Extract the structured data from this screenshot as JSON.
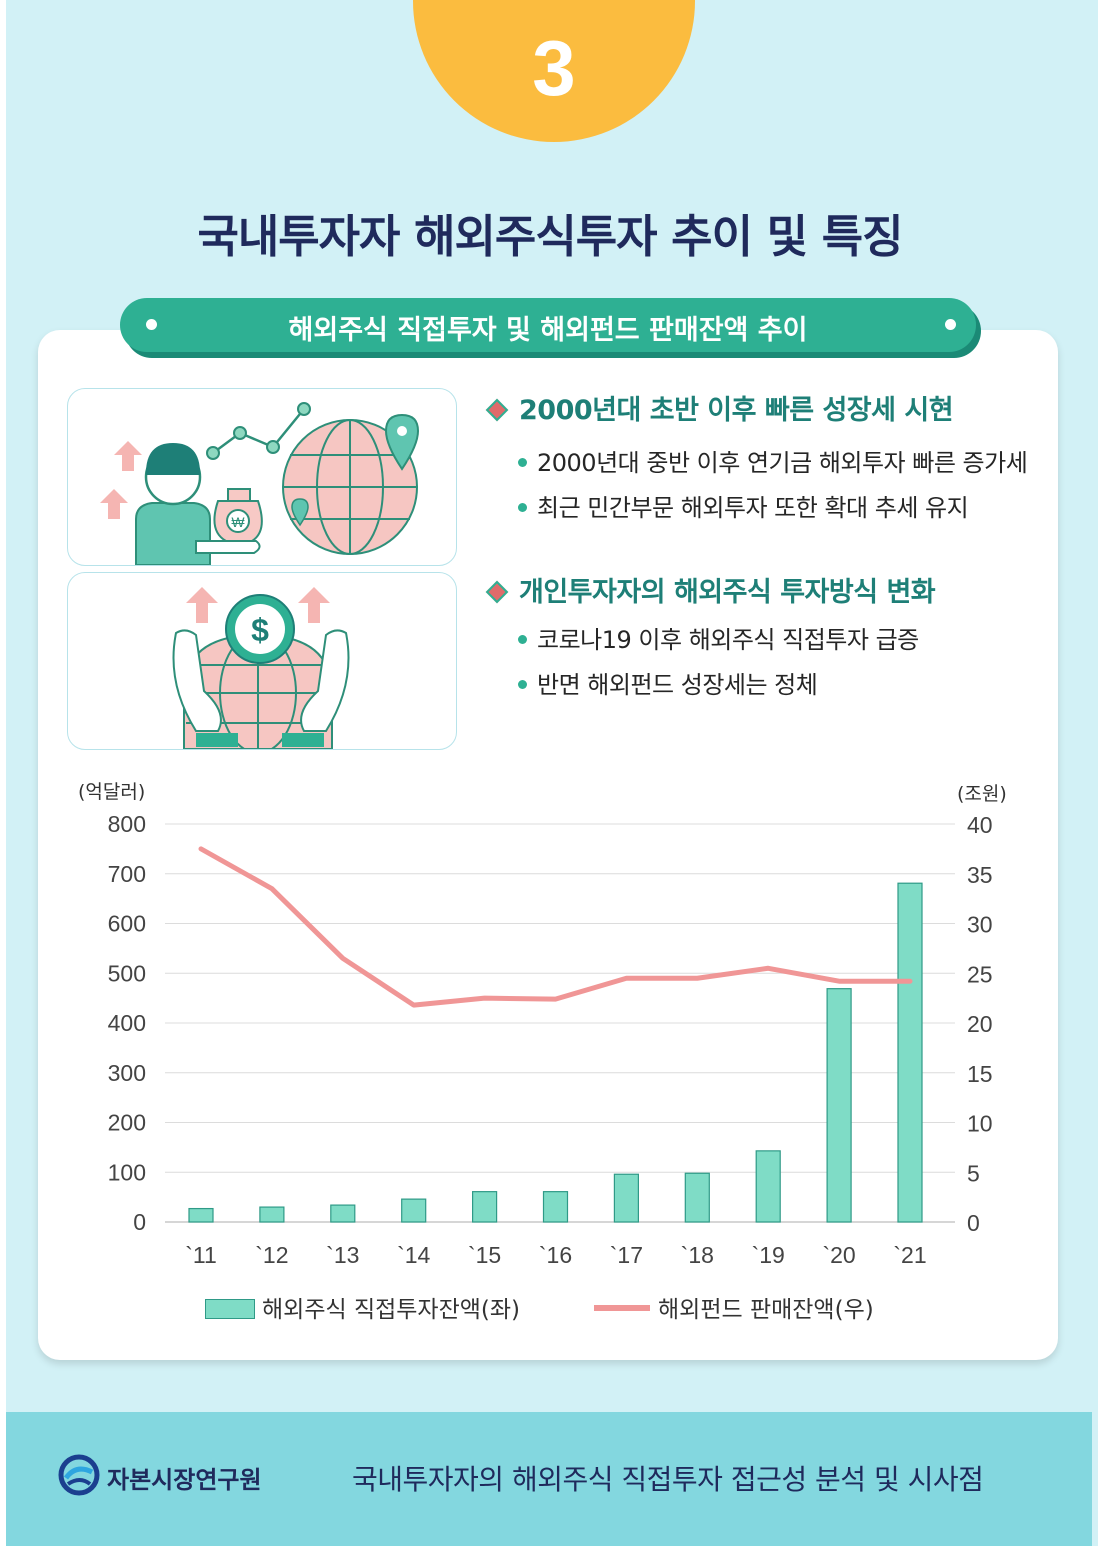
{
  "step_number": "3",
  "title": "국내투자자 해외주식투자 추이 및 특징",
  "banner": "해외주식 직접투자 및 해외펀드 판매잔액 추이",
  "sections": [
    {
      "heading": "2000년대 초반 이후 빠른 성장세 시현",
      "items": [
        "2000년대 중반 이후 연기금 해외투자 빠른 증가세",
        "최근 민간부문 해외투자 또한 확대 추세 유지"
      ]
    },
    {
      "heading": "개인투자자의 해외주식 투자방식 변화",
      "items": [
        "코로나19 이후 해외주식 직접투자 급증",
        "반면 해외펀드 성장세는 정체"
      ]
    }
  ],
  "colors": {
    "background": "#d2f1f6",
    "accent_yellow": "#fbbc3f",
    "accent_teal": "#2eb093",
    "title_navy": "#1f2a5c",
    "bar": "#7fdcc6",
    "line": "#f09696",
    "footer": "#83d7df"
  },
  "icons": [
    "person-money-bag-icon",
    "globe-location-icon",
    "hands-globe-dollar-icon",
    "up-arrow-icon"
  ],
  "chart_data": {
    "type": "bar",
    "categories": [
      "`11",
      "`12",
      "`13",
      "`14",
      "`15",
      "`16",
      "`17",
      "`18",
      "`19",
      "`20",
      "`21"
    ],
    "y_left_unit": "(억달러)",
    "y_right_unit": "(조원)",
    "y_left_ticks": [
      "800",
      "700",
      "600",
      "500",
      "400",
      "300",
      "200",
      "100",
      "0"
    ],
    "y_right_ticks": [
      "40",
      "35",
      "30",
      "25",
      "20",
      "15",
      "10",
      "5",
      "0"
    ],
    "ylim_left": [
      0,
      800
    ],
    "ylim_right": [
      0,
      40
    ],
    "grid": true,
    "legend_position": "bottom",
    "series": [
      {
        "name": "해외주식 직접투자잔액(좌)",
        "type": "bar",
        "axis": "left",
        "values": [
          27,
          30,
          34,
          46,
          61,
          61,
          96,
          98,
          143,
          469,
          681
        ]
      },
      {
        "name": "해외펀드 판매잔액(우)",
        "type": "line",
        "axis": "right",
        "values": [
          37.5,
          33.5,
          26.5,
          21.8,
          22.5,
          22.4,
          24.5,
          24.5,
          25.5,
          24.2,
          24.2
        ]
      }
    ]
  },
  "footer": {
    "org_name": "자본시장연구원",
    "doc_title": "국내투자자의 해외주식 직접투자 접근성 분석 및 시사점"
  }
}
